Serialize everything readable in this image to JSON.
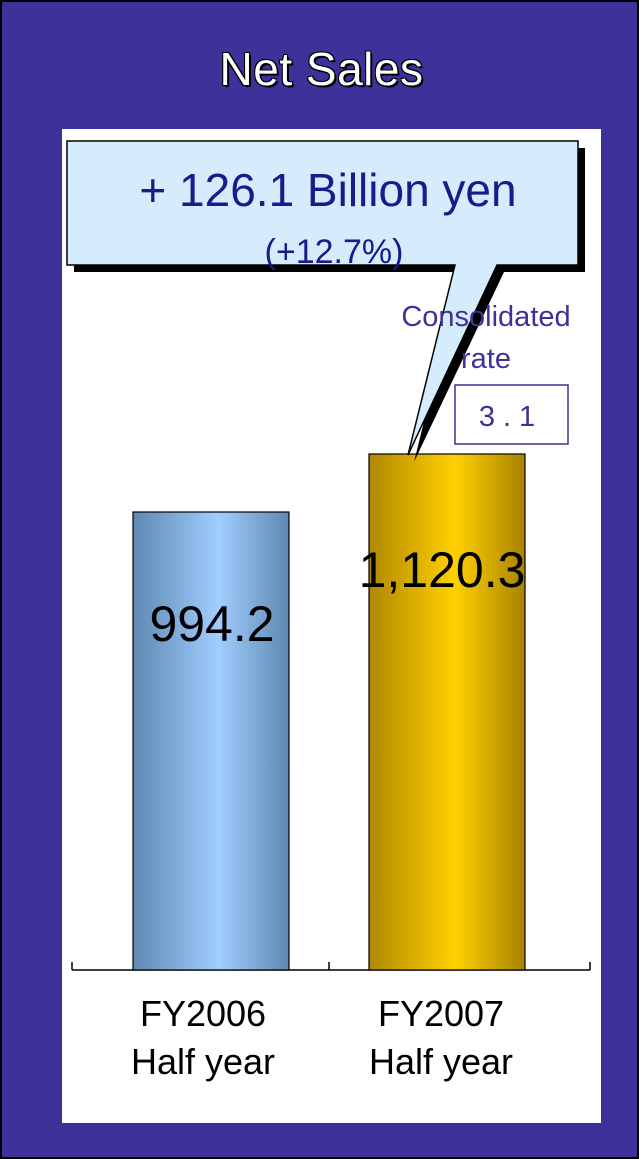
{
  "chart_data": {
    "type": "bar",
    "title": "Net Sales",
    "categories": [
      "FY2006\nHalf year",
      "FY2007\nHalf year"
    ],
    "category_lines": [
      [
        "FY2006",
        "Half year"
      ],
      [
        "FY2007",
        "Half year"
      ]
    ],
    "values": [
      994.2,
      1120.3
    ],
    "value_labels": [
      "994.2",
      "1,120.3"
    ],
    "colors": [
      "#7fb2e6",
      "#f0c000"
    ],
    "callout": {
      "main": "+ 126.1 Billion yen",
      "sub": "(+12.7%)"
    },
    "annotation": {
      "label_line1": "Consolidated",
      "label_line2": "rate",
      "value": "3.1"
    },
    "grid": false,
    "legend": "none"
  }
}
